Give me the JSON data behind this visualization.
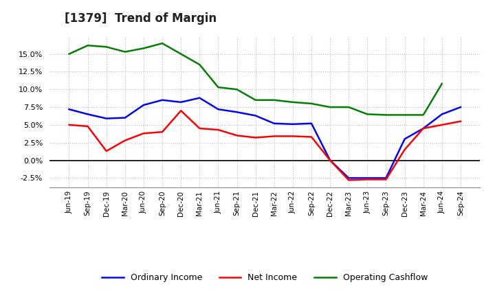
{
  "title": "[1379]  Trend of Margin",
  "x_labels": [
    "Jun-19",
    "Sep-19",
    "Dec-19",
    "Mar-20",
    "Jun-20",
    "Sep-20",
    "Dec-20",
    "Mar-21",
    "Jun-21",
    "Sep-21",
    "Dec-21",
    "Mar-22",
    "Jun-22",
    "Sep-22",
    "Dec-22",
    "Mar-23",
    "Jun-23",
    "Sep-23",
    "Dec-23",
    "Mar-24",
    "Jun-24",
    "Sep-24"
  ],
  "ordinary_income": [
    7.2,
    6.5,
    5.9,
    6.0,
    7.8,
    8.5,
    8.2,
    8.8,
    7.2,
    6.8,
    6.3,
    5.2,
    5.1,
    5.2,
    0.0,
    -2.5,
    -2.5,
    -2.5,
    3.0,
    4.5,
    6.5,
    7.5
  ],
  "net_income": [
    5.0,
    4.8,
    1.3,
    2.8,
    3.8,
    4.0,
    7.0,
    4.5,
    4.3,
    3.5,
    3.2,
    3.4,
    3.4,
    3.3,
    0.0,
    -2.8,
    -2.7,
    -2.7,
    1.5,
    4.5,
    5.0,
    5.5
  ],
  "operating_cashflow": [
    15.0,
    16.2,
    16.0,
    15.3,
    15.8,
    16.5,
    15.0,
    13.5,
    10.3,
    10.0,
    8.5,
    8.5,
    8.2,
    8.0,
    7.5,
    7.5,
    6.5,
    6.4,
    6.4,
    6.4,
    10.8,
    null
  ],
  "ylim": [
    -3.8,
    17.5
  ],
  "yticks": [
    -2.5,
    0.0,
    2.5,
    5.0,
    7.5,
    10.0,
    12.5,
    15.0
  ],
  "color_blue": "#0000FF",
  "color_red": "#FF0000",
  "color_green": "#008000",
  "background_color": "#FFFFFF",
  "grid_color": "#BBBBBB",
  "legend_labels": [
    "Ordinary Income",
    "Net Income",
    "Operating Cashflow"
  ]
}
